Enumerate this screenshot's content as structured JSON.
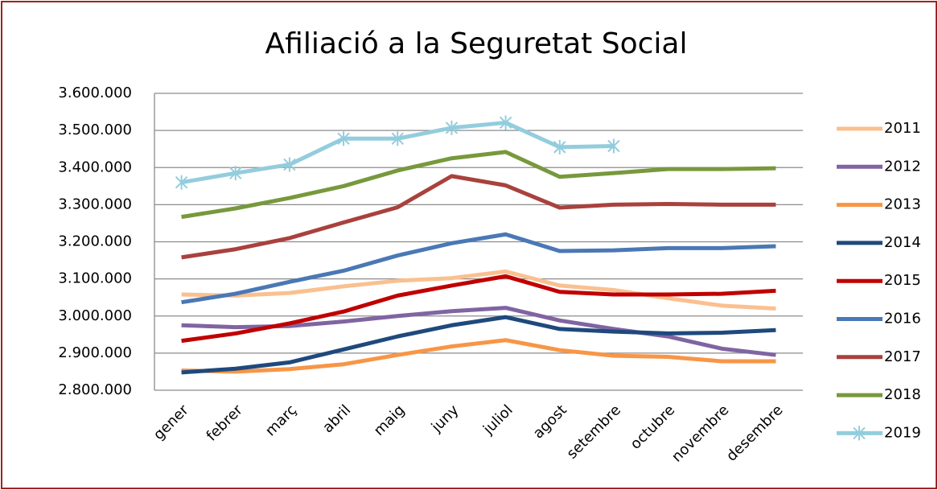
{
  "chart_data": {
    "type": "line",
    "title": "Afiliació a la Seguretat Social",
    "categories": [
      "gener",
      "febrer",
      "març",
      "abril",
      "maig",
      "juny",
      "juliol",
      "agost",
      "setembre",
      "octubre",
      "novembre",
      "desembre"
    ],
    "ylim": [
      2800000,
      3600000
    ],
    "yticks": [
      {
        "value": 2800000,
        "label": "2.800.000"
      },
      {
        "value": 2900000,
        "label": "2.900.000"
      },
      {
        "value": 3000000,
        "label": "3.000.000"
      },
      {
        "value": 3100000,
        "label": "3.100.000"
      },
      {
        "value": 3200000,
        "label": "3.200.000"
      },
      {
        "value": 3300000,
        "label": "3.300.000"
      },
      {
        "value": 3400000,
        "label": "3.400.000"
      },
      {
        "value": 3500000,
        "label": "3.500.000"
      },
      {
        "value": 3600000,
        "label": "3.600.000"
      }
    ],
    "grid": true,
    "legend": "right",
    "series": [
      {
        "name": "2011",
        "color": "#fac090",
        "values": [
          3058000,
          3055000,
          3062000,
          3080000,
          3095000,
          3102000,
          3120000,
          3082000,
          3070000,
          3048000,
          3028000,
          3020000
        ]
      },
      {
        "name": "2012",
        "color": "#8064a2",
        "values": [
          2975000,
          2970000,
          2973000,
          2985000,
          3000000,
          3013000,
          3022000,
          2988000,
          2965000,
          2945000,
          2912000,
          2895000
        ]
      },
      {
        "name": "2013",
        "color": "#f79646",
        "values": [
          2853000,
          2850000,
          2857000,
          2870000,
          2895000,
          2918000,
          2935000,
          2908000,
          2893000,
          2890000,
          2878000,
          2878000
        ]
      },
      {
        "name": "2014",
        "color": "#1f497d",
        "values": [
          2848000,
          2858000,
          2875000,
          2910000,
          2945000,
          2975000,
          2997000,
          2965000,
          2958000,
          2953000,
          2955000,
          2962000
        ]
      },
      {
        "name": "2015",
        "color": "#c00000",
        "values": [
          2933000,
          2953000,
          2980000,
          3012000,
          3055000,
          3082000,
          3107000,
          3065000,
          3058000,
          3058000,
          3060000,
          3068000
        ]
      },
      {
        "name": "2016",
        "color": "#4a78b5",
        "values": [
          3037000,
          3060000,
          3092000,
          3122000,
          3163000,
          3196000,
          3220000,
          3175000,
          3177000,
          3183000,
          3183000,
          3188000
        ]
      },
      {
        "name": "2017",
        "color": "#a9413d",
        "values": [
          3158000,
          3180000,
          3210000,
          3252000,
          3293000,
          3377000,
          3352000,
          3292000,
          3300000,
          3302000,
          3300000,
          3300000
        ]
      },
      {
        "name": "2018",
        "color": "#77993c",
        "values": [
          3267000,
          3290000,
          3318000,
          3350000,
          3392000,
          3425000,
          3442000,
          3375000,
          3385000,
          3396000,
          3396000,
          3398000
        ]
      },
      {
        "name": "2019",
        "color": "#93cddd",
        "marker": "x",
        "values": [
          3360000,
          3385000,
          3408000,
          3478000,
          3478000,
          3507000,
          3521000,
          3455000,
          3458000,
          null,
          null,
          null
        ]
      }
    ]
  }
}
